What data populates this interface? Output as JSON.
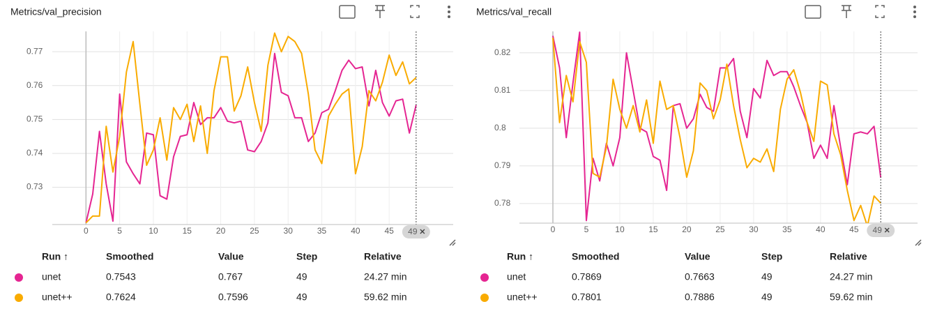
{
  "chart_data": [
    {
      "type": "line",
      "title": "Metrics/val_precision",
      "x": [
        0,
        1,
        2,
        3,
        4,
        5,
        6,
        7,
        8,
        9,
        10,
        11,
        12,
        13,
        14,
        15,
        16,
        17,
        18,
        19,
        20,
        21,
        22,
        23,
        24,
        25,
        26,
        27,
        28,
        29,
        30,
        31,
        32,
        33,
        34,
        35,
        36,
        37,
        38,
        39,
        40,
        41,
        42,
        43,
        44,
        45,
        46,
        47,
        48,
        49
      ],
      "xlim": [
        -5,
        54.5
      ],
      "xticks": [
        0,
        5,
        10,
        15,
        20,
        25,
        30,
        35,
        40,
        45
      ],
      "ylim": [
        0.719,
        0.776
      ],
      "yticks": [
        0.73,
        0.74,
        0.75,
        0.76,
        0.77
      ],
      "grid": true,
      "marker_step": 49,
      "series": [
        {
          "name": "unet",
          "color": "#e52592",
          "values": [
            0.7195,
            0.728,
            0.7465,
            0.731,
            0.72,
            0.7575,
            0.7375,
            0.734,
            0.731,
            0.746,
            0.7455,
            0.7275,
            0.7265,
            0.739,
            0.745,
            0.7455,
            0.755,
            0.7485,
            0.7505,
            0.7505,
            0.7535,
            0.7495,
            0.749,
            0.7495,
            0.741,
            0.7405,
            0.7435,
            0.749,
            0.7695,
            0.758,
            0.757,
            0.7505,
            0.7505,
            0.7435,
            0.746,
            0.752,
            0.753,
            0.7585,
            0.7645,
            0.7675,
            0.765,
            0.7655,
            0.754,
            0.7645,
            0.755,
            0.751,
            0.7555,
            0.756,
            0.746,
            0.7543
          ]
        },
        {
          "name": "unet++",
          "color": "#f9ab00",
          "values": [
            0.7195,
            0.7215,
            0.7215,
            0.748,
            0.7345,
            0.745,
            0.764,
            0.773,
            0.7545,
            0.7365,
            0.741,
            0.7505,
            0.738,
            0.7535,
            0.75,
            0.7545,
            0.7435,
            0.754,
            0.74,
            0.7585,
            0.7685,
            0.7685,
            0.7525,
            0.757,
            0.7655,
            0.755,
            0.7465,
            0.766,
            0.7755,
            0.77,
            0.7745,
            0.773,
            0.7695,
            0.7575,
            0.741,
            0.737,
            0.751,
            0.7545,
            0.7575,
            0.759,
            0.734,
            0.742,
            0.7585,
            0.7555,
            0.761,
            0.769,
            0.763,
            0.767,
            0.7605,
            0.7624
          ]
        }
      ],
      "table": {
        "headers": [
          "Run ↑",
          "Smoothed",
          "Value",
          "Step",
          "Relative"
        ],
        "rows": [
          [
            "unet",
            "0.7543",
            "0.767",
            "49",
            "24.27 min"
          ],
          [
            "unet++",
            "0.7624",
            "0.7596",
            "49",
            "59.62 min"
          ]
        ]
      }
    },
    {
      "type": "line",
      "title": "Metrics/val_recall",
      "x": [
        0,
        1,
        2,
        3,
        4,
        5,
        6,
        7,
        8,
        9,
        10,
        11,
        12,
        13,
        14,
        15,
        16,
        17,
        18,
        19,
        20,
        21,
        22,
        23,
        24,
        25,
        26,
        27,
        28,
        29,
        30,
        31,
        32,
        33,
        34,
        35,
        36,
        37,
        38,
        39,
        40,
        41,
        42,
        43,
        44,
        45,
        46,
        47,
        48,
        49
      ],
      "xlim": [
        -5,
        54.5
      ],
      "xticks": [
        0,
        5,
        10,
        15,
        20,
        25,
        30,
        35,
        40,
        45
      ],
      "ylim": [
        0.7748,
        0.8257
      ],
      "yticks": [
        0.78,
        0.79,
        0.8,
        0.81,
        0.82
      ],
      "grid": true,
      "marker_step": 49,
      "series": [
        {
          "name": "unet",
          "color": "#e52592",
          "values": [
            0.8245,
            0.816,
            0.7975,
            0.812,
            0.8255,
            0.7755,
            0.792,
            0.786,
            0.796,
            0.79,
            0.7975,
            0.82,
            0.81,
            0.8,
            0.799,
            0.7925,
            0.7915,
            0.7835,
            0.806,
            0.8065,
            0.8,
            0.8025,
            0.809,
            0.8055,
            0.8045,
            0.816,
            0.816,
            0.8185,
            0.8045,
            0.7975,
            0.8105,
            0.808,
            0.818,
            0.814,
            0.815,
            0.815,
            0.811,
            0.806,
            0.8015,
            0.792,
            0.7955,
            0.792,
            0.806,
            0.795,
            0.785,
            0.7985,
            0.799,
            0.7985,
            0.8005,
            0.7869
          ]
        },
        {
          "name": "unet++",
          "color": "#f9ab00",
          "values": [
            0.824,
            0.8015,
            0.814,
            0.807,
            0.823,
            0.8175,
            0.788,
            0.787,
            0.795,
            0.813,
            0.805,
            0.8,
            0.806,
            0.799,
            0.8075,
            0.796,
            0.8125,
            0.805,
            0.806,
            0.7975,
            0.787,
            0.794,
            0.812,
            0.81,
            0.8025,
            0.8075,
            0.817,
            0.806,
            0.797,
            0.7895,
            0.792,
            0.791,
            0.7945,
            0.7885,
            0.805,
            0.813,
            0.8155,
            0.8095,
            0.8015,
            0.7965,
            0.8125,
            0.8115,
            0.7985,
            0.793,
            0.7835,
            0.7755,
            0.7795,
            0.774,
            0.782,
            0.7801
          ]
        }
      ],
      "table": {
        "headers": [
          "Run ↑",
          "Smoothed",
          "Value",
          "Step",
          "Relative"
        ],
        "rows": [
          [
            "unet",
            "0.7869",
            "0.7663",
            "49",
            "24.27 min"
          ],
          [
            "unet++",
            "0.7801",
            "0.7886",
            "49",
            "59.62 min"
          ]
        ]
      }
    }
  ]
}
